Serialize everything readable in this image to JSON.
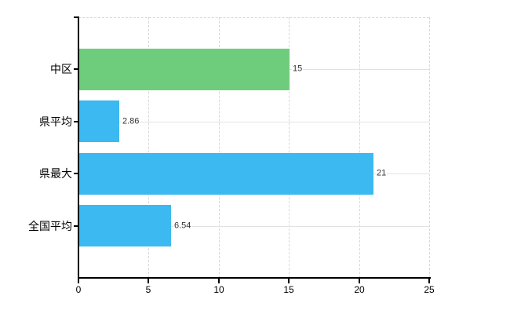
{
  "chart_data": {
    "type": "bar",
    "orientation": "horizontal",
    "title": "",
    "xlabel": "",
    "ylabel": "",
    "categories": [
      "中区",
      "県平均",
      "県最大",
      "全国平均"
    ],
    "values": [
      15,
      2.86,
      21,
      6.54
    ],
    "value_labels": [
      "15",
      "2.86",
      "21",
      "6.54"
    ],
    "bar_colors": [
      "#6ecd7d",
      "#3cb9f0",
      "#3cb9f0",
      "#3cb9f0"
    ],
    "xlim": [
      0,
      25
    ],
    "x_ticks": [
      0,
      5,
      10,
      15,
      20,
      25
    ],
    "x_tick_labels": [
      "0",
      "5",
      "10",
      "15",
      "20",
      "25"
    ],
    "grid": true,
    "legend": "none"
  },
  "colors": {
    "background": "#ffffff",
    "axis": "#000000",
    "gridline_dashed": "#d7d7d7",
    "gridline_solid": "#e2e2e2",
    "bar_green": "#6ecd7d",
    "bar_blue": "#3cb9f0",
    "value_label_text": "#333333",
    "tick_label_text": "#000000"
  }
}
